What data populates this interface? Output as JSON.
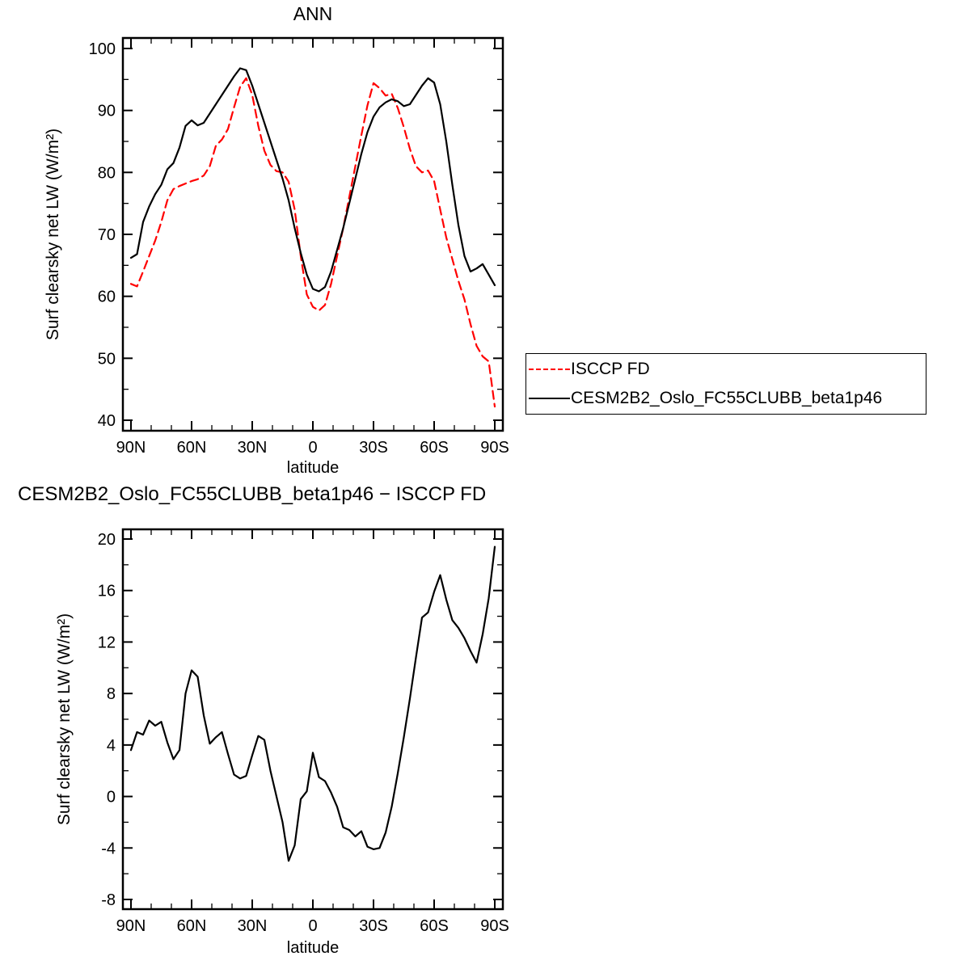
{
  "page": {
    "background": "#ffffff"
  },
  "legend": {
    "entries": [
      {
        "label": "ISCCP FD",
        "color": "#ff0000",
        "dash": true
      },
      {
        "label": "CESM2B2_Oslo_FC55CLUBB_beta1p46",
        "color": "#000000",
        "dash": false
      }
    ]
  },
  "chart_data": [
    {
      "type": "line",
      "title": "ANN",
      "xlabel": "latitude",
      "ylabel": "Surf clearsky net LW (W/m²)",
      "xlim": [
        90,
        -90
      ],
      "ylim": [
        40,
        100
      ],
      "y_major_step": 10,
      "y_minor_step": 5,
      "x_minor_step": 10,
      "x_tick_lats": [
        90,
        60,
        30,
        0,
        -30,
        -60,
        -90
      ],
      "x_tick_labels": [
        "90N",
        "60N",
        "30N",
        "0",
        "30S",
        "60S",
        "90S"
      ],
      "legend_position": "right",
      "grid": false,
      "x": [
        90,
        87,
        84,
        81,
        78,
        75,
        72,
        69,
        66,
        63,
        60,
        57,
        54,
        51,
        48,
        45,
        42,
        39,
        36,
        33,
        30,
        27,
        24,
        21,
        18,
        15,
        12,
        9,
        6,
        3,
        0,
        -3,
        -6,
        -9,
        -12,
        -15,
        -18,
        -21,
        -24,
        -27,
        -30,
        -33,
        -36,
        -39,
        -42,
        -45,
        -48,
        -51,
        -54,
        -57,
        -60,
        -63,
        -66,
        -69,
        -72,
        -75,
        -78,
        -81,
        -84,
        -87,
        -90
      ],
      "series": [
        {
          "name": "ISCCP FD",
          "color": "#ff0000",
          "dash": true,
          "values": [
            62.0,
            61.6,
            64.0,
            66.5,
            69.0,
            72.0,
            75.5,
            77.3,
            77.8,
            78.2,
            78.6,
            78.9,
            79.5,
            81.0,
            84.3,
            85.3,
            87.0,
            90.5,
            93.8,
            95.2,
            92.5,
            87.5,
            83.5,
            81.2,
            80.2,
            80.0,
            78.5,
            74.0,
            66.5,
            60.3,
            58.3,
            57.7,
            58.6,
            62.0,
            66.5,
            71.0,
            76.0,
            81.0,
            86.0,
            90.8,
            94.4,
            93.6,
            92.4,
            92.7,
            90.4,
            87.3,
            83.8,
            81.0,
            80.0,
            80.3,
            78.6,
            74.0,
            69.5,
            66.0,
            62.5,
            59.5,
            55.5,
            52.0,
            50.3,
            49.5,
            42.2
          ]
        },
        {
          "name": "CESM2B2_Oslo_FC55CLUBB_beta1p46",
          "color": "#000000",
          "dash": false,
          "values": [
            66.2,
            66.8,
            72.0,
            74.5,
            76.5,
            78.0,
            80.5,
            81.5,
            84.0,
            87.5,
            88.4,
            87.6,
            88.0,
            89.5,
            91.0,
            92.5,
            94.0,
            95.5,
            96.8,
            96.5,
            94.0,
            91.0,
            88.0,
            85.0,
            82.0,
            79.0,
            75.5,
            71.0,
            67.0,
            63.5,
            61.2,
            60.8,
            61.5,
            64.0,
            67.5,
            71.0,
            75.0,
            79.0,
            83.0,
            86.5,
            89.0,
            90.5,
            91.3,
            91.8,
            91.5,
            90.7,
            91.0,
            92.5,
            94.0,
            95.2,
            94.5,
            91.0,
            85.0,
            78.0,
            71.5,
            66.5,
            64.0,
            64.5,
            65.2,
            63.5,
            61.8
          ]
        }
      ]
    },
    {
      "type": "line",
      "title": "CESM2B2_Oslo_FC55CLUBB_beta1p46 − ISCCP FD",
      "xlabel": "latitude",
      "ylabel": "Surf clearsky net LW (W/m²)",
      "xlim": [
        90,
        -90
      ],
      "ylim": [
        -8,
        20
      ],
      "y_major_step": 4,
      "y_minor_step": 2,
      "x_minor_step": 10,
      "x_tick_lats": [
        90,
        60,
        30,
        0,
        -30,
        -60,
        -90
      ],
      "x_tick_labels": [
        "90N",
        "60N",
        "30N",
        "0",
        "30S",
        "60S",
        "90S"
      ],
      "legend_position": "none",
      "grid": false,
      "x": [
        90,
        87,
        84,
        81,
        78,
        75,
        72,
        69,
        66,
        63,
        60,
        57,
        54,
        51,
        48,
        45,
        42,
        39,
        36,
        33,
        30,
        27,
        24,
        21,
        18,
        15,
        12,
        9,
        6,
        3,
        0,
        -3,
        -6,
        -9,
        -12,
        -15,
        -18,
        -21,
        -24,
        -27,
        -30,
        -33,
        -36,
        -39,
        -42,
        -45,
        -48,
        -51,
        -54,
        -57,
        -60,
        -63,
        -66,
        -69,
        -72,
        -75,
        -78,
        -81,
        -84,
        -87,
        -90
      ],
      "series": [
        {
          "name": "CESM2B2_Oslo_FC55CLUBB_beta1p46 − ISCCP FD",
          "color": "#000000",
          "dash": false,
          "values": [
            3.6,
            5.0,
            4.8,
            5.9,
            5.5,
            5.8,
            4.2,
            2.9,
            3.6,
            8.0,
            9.8,
            9.3,
            6.3,
            4.1,
            4.6,
            5.0,
            3.3,
            1.7,
            1.4,
            1.6,
            3.2,
            4.7,
            4.4,
            2.0,
            0.0,
            -2.0,
            -5.0,
            -3.8,
            -0.2,
            0.4,
            3.4,
            1.5,
            1.2,
            0.3,
            -0.8,
            -2.4,
            -2.6,
            -3.1,
            -2.7,
            -3.9,
            -4.1,
            -4.0,
            -2.8,
            -0.8,
            1.8,
            4.6,
            7.6,
            10.8,
            13.9,
            14.3,
            15.9,
            17.2,
            15.3,
            13.7,
            13.1,
            12.3,
            11.3,
            10.4,
            12.6,
            15.4,
            19.4
          ]
        }
      ]
    }
  ]
}
